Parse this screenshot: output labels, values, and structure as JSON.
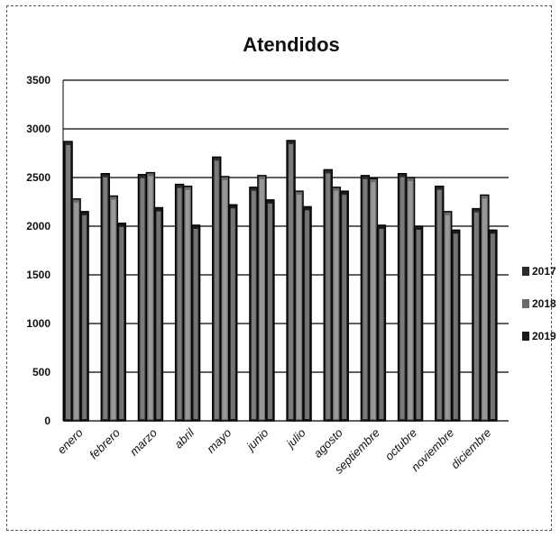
{
  "chart_data": {
    "type": "bar",
    "title": "Atendidos",
    "categories": [
      "enero",
      "febrero",
      "marzo",
      "abril",
      "mayo",
      "junio",
      "julio",
      "agosto",
      "septiembre",
      "octubre",
      "noviembre",
      "diciembre"
    ],
    "series": [
      {
        "name": "2017",
        "values": [
          2870,
          2540,
          2530,
          2430,
          2710,
          2400,
          2880,
          2580,
          2520,
          2540,
          2410,
          2180
        ],
        "color": "#2b2b2b"
      },
      {
        "name": "2018",
        "values": [
          2280,
          2310,
          2550,
          2410,
          2510,
          2520,
          2360,
          2400,
          2490,
          2500,
          2150,
          2320
        ],
        "color": "#6a6a6a"
      },
      {
        "name": "2019",
        "values": [
          2150,
          2030,
          2190,
          2010,
          2220,
          2270,
          2200,
          2360,
          2010,
          2000,
          1960,
          1960
        ],
        "color": "#1a1a1a"
      }
    ],
    "yticks": [
      "0",
      "500",
      "1000",
      "1500",
      "2000",
      "2500",
      "3000",
      "3500"
    ],
    "ylim": [
      0,
      3500
    ],
    "grid": true,
    "legend": "right"
  }
}
